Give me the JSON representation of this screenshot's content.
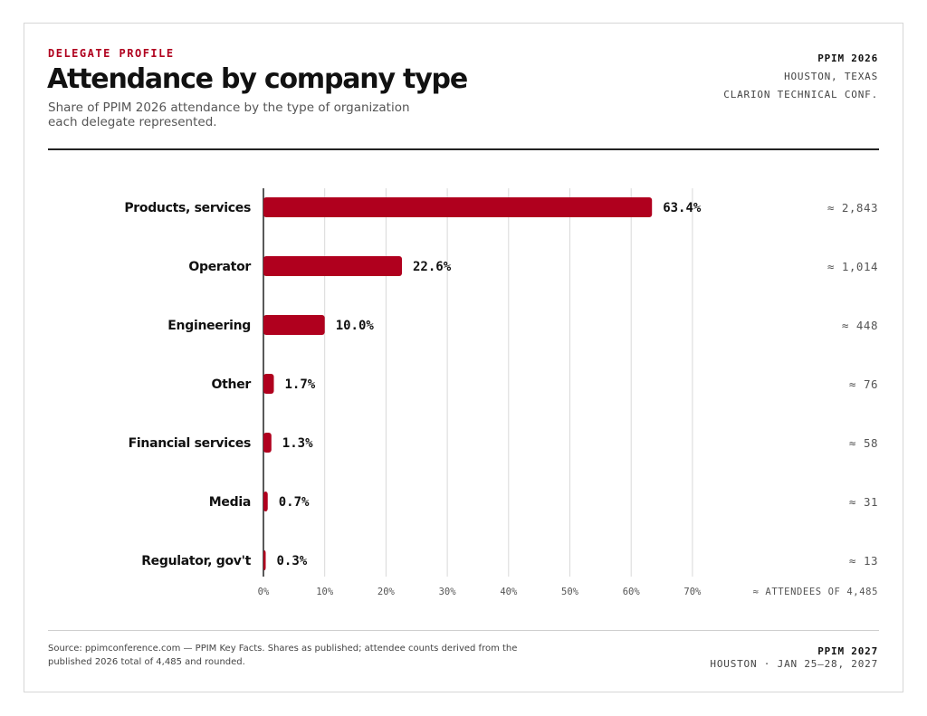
{
  "header": {
    "eyebrow": "DELEGATE PROFILE",
    "title": "Attendance by company type",
    "subtitle": "Share of PPIM 2026 attendance by the type of organization each delegate represented."
  },
  "meta": {
    "event": "PPIM 2026",
    "location": "HOUSTON, TEXAS",
    "venue": "CLARION TECHNICAL CONF."
  },
  "chart_data": {
    "type": "bar",
    "orientation": "horizontal",
    "categories": [
      "Products, services",
      "Operator",
      "Engineering",
      "Other",
      "Financial services",
      "Media",
      "Regulator, gov't"
    ],
    "values": [
      63.4,
      22.6,
      10.0,
      1.7,
      1.3,
      0.7,
      0.3
    ],
    "value_labels": [
      "63.4%",
      "22.6%",
      "10.0%",
      "1.7%",
      "1.3%",
      "0.7%",
      "0.3%"
    ],
    "attendee_labels": [
      "≈ 2,843",
      "≈ 1,014",
      "≈ 448",
      "≈ 76",
      "≈ 58",
      "≈ 31",
      "≈ 13"
    ],
    "xlim": [
      0,
      70
    ],
    "xticks": [
      0,
      10,
      20,
      30,
      40,
      50,
      60,
      70
    ],
    "xtick_labels": [
      "0%",
      "10%",
      "20%",
      "30%",
      "40%",
      "50%",
      "60%",
      "70%"
    ],
    "attendee_axis_label": "≈ ATTENDEES OF 4,485",
    "grid": true,
    "bar_color": "#b0001e"
  },
  "footer": {
    "source": "Source: ppimconference.com — PPIM Key Facts. Shares as published; attendee counts derived from the published 2026 total of 4,485 and rounded.",
    "next_event": "PPIM 2027",
    "next_dates": "HOUSTON · JAN 25–28, 2027"
  }
}
